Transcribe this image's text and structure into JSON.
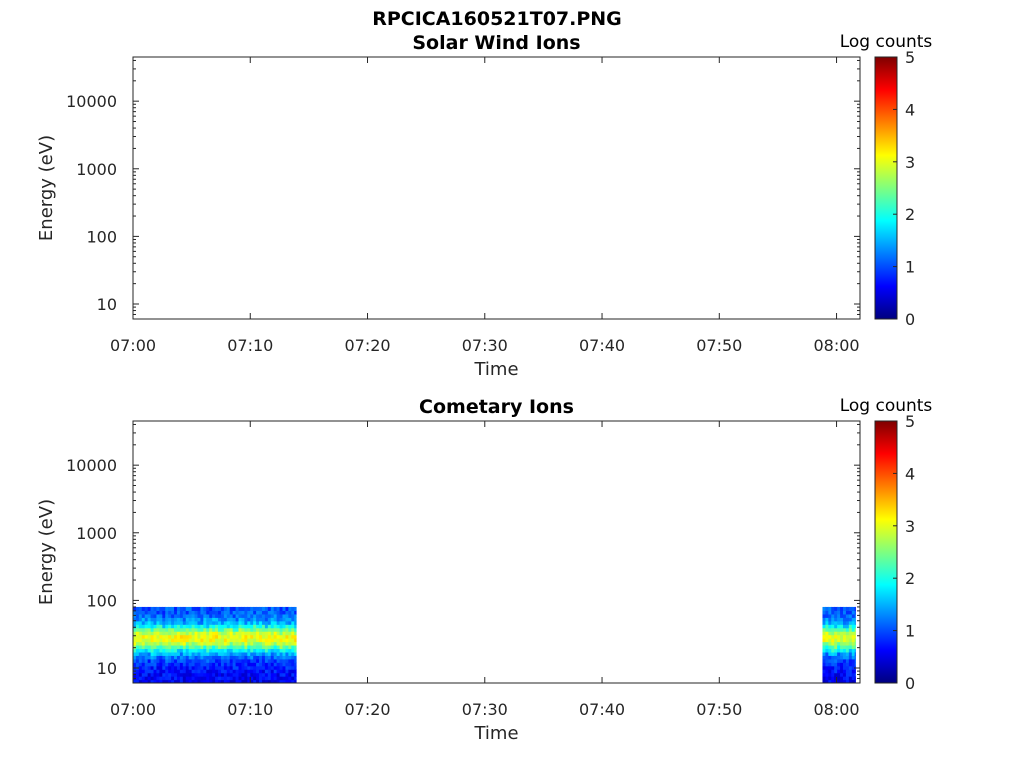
{
  "figure_title": "RPCICA160521T07.PNG",
  "colormap": {
    "stops": [
      "#00007f",
      "#0000ff",
      "#007fff",
      "#00ffff",
      "#7fff7f",
      "#ffff00",
      "#ff7f00",
      "#ff0000",
      "#7f0000"
    ]
  },
  "chart_data": [
    {
      "type": "heatmap",
      "title": "Solar Wind Ions",
      "xlabel": "Time",
      "ylabel": "Energy (eV)",
      "x_ticks": [
        "07:00",
        "07:10",
        "07:20",
        "07:30",
        "07:40",
        "07:50",
        "08:00"
      ],
      "y_ticks": [
        "10",
        "100",
        "1000",
        "10000"
      ],
      "xlim_minutes": [
        0,
        62
      ],
      "ylim": [
        6,
        45000
      ],
      "y_scale": "log",
      "colorbar": {
        "label": "Log counts",
        "ticks": [
          "0",
          "1",
          "2",
          "3",
          "4",
          "5"
        ],
        "range": [
          0,
          5
        ]
      },
      "data_blocks": []
    },
    {
      "type": "heatmap",
      "title": "Cometary Ions",
      "xlabel": "Time",
      "ylabel": "Energy (eV)",
      "x_ticks": [
        "07:00",
        "07:10",
        "07:20",
        "07:30",
        "07:40",
        "07:50",
        "08:00"
      ],
      "y_ticks": [
        "10",
        "100",
        "1000",
        "10000"
      ],
      "xlim_minutes": [
        0,
        62
      ],
      "ylim": [
        6,
        45000
      ],
      "y_scale": "log",
      "colorbar": {
        "label": "Log counts",
        "ticks": [
          "0",
          "1",
          "2",
          "3",
          "4",
          "5"
        ],
        "range": [
          0,
          5
        ]
      },
      "data_blocks": [
        {
          "t_start_min": 0,
          "t_end_min": 13.9,
          "e_min": 6,
          "e_max": 80,
          "peak_energy_eV": 28,
          "peak_log_counts": 3.1,
          "background_log_counts": 0.9
        },
        {
          "t_start_min": 58.8,
          "t_end_min": 61.6,
          "e_min": 6,
          "e_max": 80,
          "peak_energy_eV": 28,
          "peak_log_counts": 3.0,
          "background_log_counts": 0.9
        }
      ]
    }
  ]
}
